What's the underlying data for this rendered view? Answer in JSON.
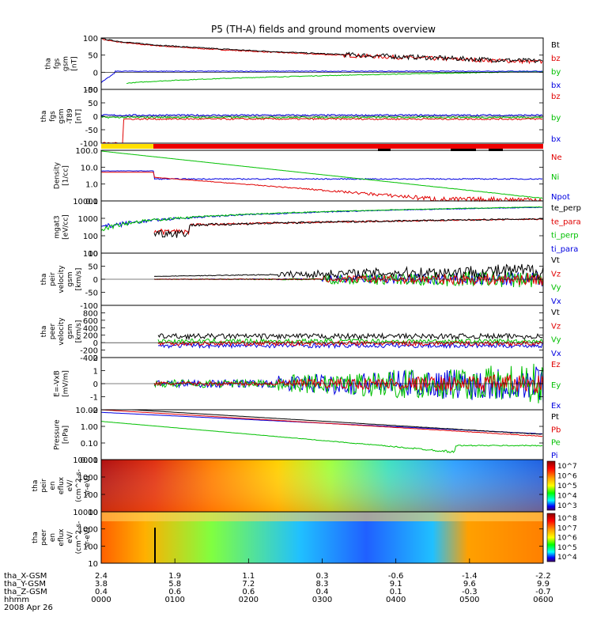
{
  "chart_data": {
    "type": "line",
    "title": "P5 (TH-A) fields and ground moments overview",
    "date_label": "2008 Apr 26",
    "panels": [
      {
        "id": "fgs",
        "ylabel": [
          "tha",
          "fgs",
          "gsm",
          "[nT]"
        ],
        "ylim": [
          -50,
          100
        ],
        "yticks": [
          -50,
          0,
          50,
          100
        ],
        "legend": [
          {
            "name": "Bt",
            "color": "#000000"
          },
          {
            "name": "bz",
            "color": "#e00000"
          },
          {
            "name": "by",
            "color": "#00c000"
          },
          {
            "name": "bx",
            "color": "#0000e0"
          }
        ]
      },
      {
        "id": "fgs_t89",
        "ylabel": [
          "tha",
          "fgs",
          "gsm",
          "-T89",
          "[nT]"
        ],
        "ylim": [
          -100,
          100
        ],
        "yticks": [
          -100,
          -50,
          0,
          50,
          100
        ],
        "legend": [
          {
            "name": "bz",
            "color": "#e00000"
          },
          {
            "name": "by",
            "color": "#00c000"
          },
          {
            "name": "bx",
            "color": "#0000e0"
          }
        ]
      },
      {
        "id": "density",
        "ylabel": [
          "Density",
          "[1/cc]"
        ],
        "yscale": "log",
        "ylim": [
          0.1,
          100
        ],
        "yticks": [
          0.1,
          1,
          10,
          100
        ],
        "ytick_labels": [
          "0.1",
          "1.0",
          "10.0",
          "100.0"
        ],
        "legend": [
          {
            "name": "Ne",
            "color": "#e00000"
          },
          {
            "name": "Ni",
            "color": "#00c000"
          },
          {
            "name": "Npot",
            "color": "#0000e0"
          }
        ]
      },
      {
        "id": "temperature",
        "ylabel": [
          "mgat3",
          "[eV/cc]"
        ],
        "yscale": "log",
        "ylim": [
          10,
          10000
        ],
        "yticks": [
          10,
          100,
          1000,
          10000
        ],
        "ytick_labels": [
          "10",
          "100",
          "1000",
          "10000"
        ],
        "legend": [
          {
            "name": "te_perp",
            "color": "#000000"
          },
          {
            "name": "te_para",
            "color": "#e00000"
          },
          {
            "name": "ti_perp",
            "color": "#00c000"
          },
          {
            "name": "ti_para",
            "color": "#0000e0"
          }
        ]
      },
      {
        "id": "peir_velocity",
        "ylabel": [
          "tha",
          "peir",
          "velocity",
          "gsm",
          "[km/s]"
        ],
        "ylim": [
          -100,
          100
        ],
        "yticks": [
          -100,
          -50,
          0,
          50,
          100
        ],
        "legend": [
          {
            "name": "Vt",
            "color": "#000000"
          },
          {
            "name": "Vz",
            "color": "#e00000"
          },
          {
            "name": "Vy",
            "color": "#00c000"
          },
          {
            "name": "Vx",
            "color": "#0000e0"
          }
        ]
      },
      {
        "id": "peer_velocity",
        "ylabel": [
          "tha",
          "peer",
          "velocity",
          "gsm",
          "[km/s]"
        ],
        "ylim": [
          -400,
          1000
        ],
        "yticks": [
          -400,
          -200,
          0,
          200,
          400,
          600,
          800
        ],
        "legend": [
          {
            "name": "Vt",
            "color": "#000000"
          },
          {
            "name": "Vz",
            "color": "#e00000"
          },
          {
            "name": "Vy",
            "color": "#00c000"
          },
          {
            "name": "Vx",
            "color": "#0000e0"
          }
        ]
      },
      {
        "id": "efield",
        "ylabel": [
          "E=-VxB",
          "[mV/m]"
        ],
        "ylim": [
          -2,
          2
        ],
        "yticks": [
          -2,
          -1,
          0,
          1,
          2
        ],
        "legend": [
          {
            "name": "Ez",
            "color": "#e00000"
          },
          {
            "name": "Ey",
            "color": "#00c000"
          },
          {
            "name": "Ex",
            "color": "#0000e0"
          }
        ]
      },
      {
        "id": "pressure",
        "ylabel": [
          "Pressure",
          "[nPa]"
        ],
        "yscale": "log",
        "ylim": [
          0.01,
          10
        ],
        "yticks": [
          0.01,
          0.1,
          1,
          10
        ],
        "ytick_labels": [
          "0.01",
          "0.10",
          "1.00",
          "10.00"
        ],
        "legend": [
          {
            "name": "Pt",
            "color": "#000000"
          },
          {
            "name": "Pb",
            "color": "#e00000"
          },
          {
            "name": "Pe",
            "color": "#00c000"
          },
          {
            "name": "Pi",
            "color": "#0000e0"
          }
        ]
      },
      {
        "id": "peir_en_eflux",
        "type": "heatmap",
        "ylabel": [
          "tha",
          "peir",
          "en",
          "eflux",
          "eV/",
          "(cm^2-s-",
          "sr-eV)"
        ],
        "yscale": "log",
        "ylim": [
          10,
          10000
        ],
        "yticks": [
          10,
          100,
          1000,
          10000
        ],
        "ytick_labels": [
          "10",
          "100",
          "1000",
          "10000"
        ],
        "colorbar": {
          "scale": "log",
          "range": [
            1000,
            10000000
          ],
          "labels": [
            "10^7",
            "10^6",
            "10^5",
            "10^4",
            "10^3"
          ]
        }
      },
      {
        "id": "peer_en_eflux",
        "type": "heatmap",
        "ylabel": [
          "tha",
          "peer",
          "en",
          "eflux",
          "eV/",
          "(cm^2-s-",
          "sr-eV)"
        ],
        "yscale": "log",
        "ylim": [
          10,
          10000
        ],
        "yticks": [
          10,
          100,
          1000,
          10000
        ],
        "ytick_labels": [
          "10",
          "100",
          "1000",
          "10000"
        ],
        "colorbar": {
          "scale": "log",
          "range": [
            10000,
            100000000
          ],
          "labels": [
            "10^8",
            "10^7",
            "10^6",
            "10^5",
            "10^4"
          ]
        }
      }
    ],
    "x_axis": {
      "range": [
        "0000",
        "0600"
      ],
      "tick_rows": [
        {
          "label": "tha_X-GSM",
          "values": [
            "2.4",
            "1.9",
            "1.1",
            "0.3",
            "-0.6",
            "-1.4",
            "-2.2"
          ]
        },
        {
          "label": "tha_Y-GSM",
          "values": [
            "3.8",
            "5.8",
            "7.2",
            "8.3",
            "9.1",
            "9.6",
            "9.9"
          ]
        },
        {
          "label": "tha_Z-GSM",
          "values": [
            "0.4",
            "0.6",
            "0.6",
            "0.4",
            "0.1",
            "-0.3",
            "-0.7"
          ]
        },
        {
          "label": "hhmm",
          "values": [
            "0000",
            "0100",
            "0200",
            "0300",
            "0400",
            "0500",
            "0600"
          ]
        }
      ]
    }
  }
}
